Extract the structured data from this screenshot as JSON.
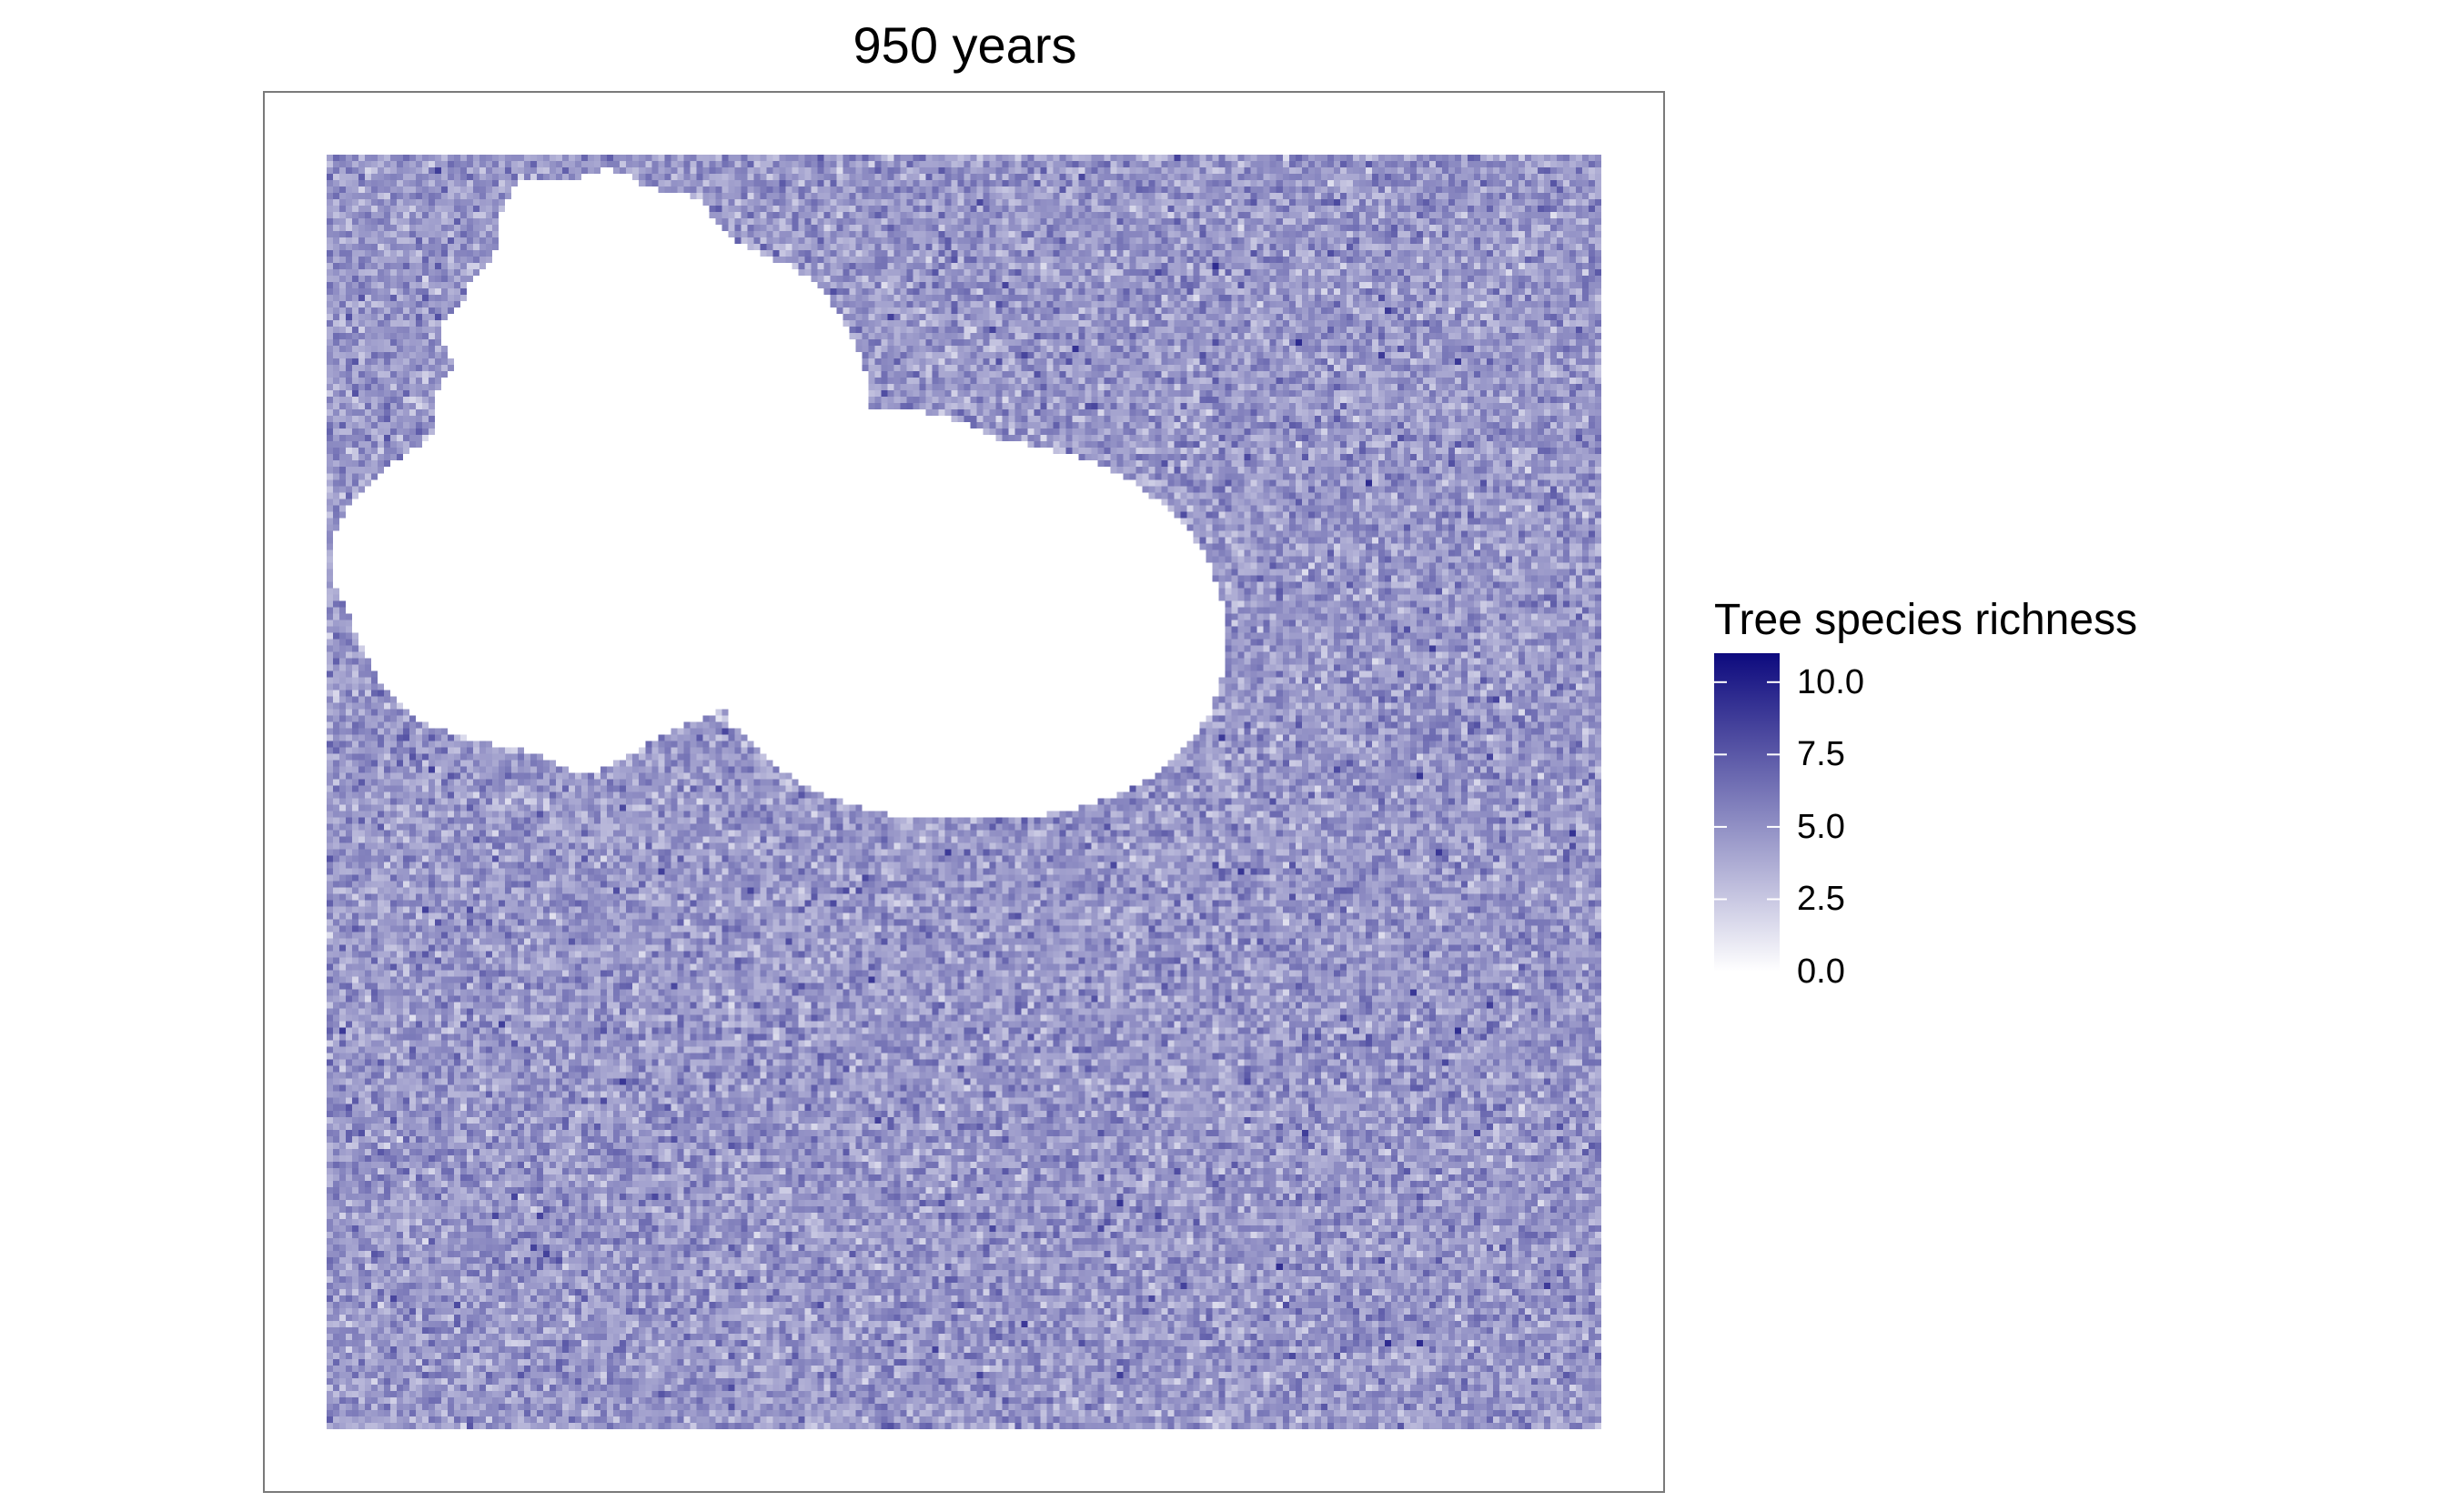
{
  "title": "950 years",
  "chart_data": {
    "type": "heatmap",
    "title": "950 years",
    "xlabel": "",
    "ylabel": "",
    "grid": false,
    "value_range": [
      0,
      11
    ],
    "legend": {
      "title": "Tree species richness",
      "placement": "right",
      "ticks": [
        {
          "value": 10,
          "label": "10.0"
        },
        {
          "value": 7.5,
          "label": "7.5"
        },
        {
          "value": 5,
          "label": "5.0"
        },
        {
          "value": 2.5,
          "label": "2.5"
        },
        {
          "value": 0,
          "label": "0.0"
        }
      ]
    },
    "palette": {
      "low": "#ffffff",
      "high": "#0d0a7e",
      "na": "#ffffff"
    },
    "grid_size": 200,
    "pattern": "noisy richness field, mostly 2–7 species, with an irregular region of zero richness (white) left of centre",
    "typical_value_range": [
      2,
      7
    ]
  }
}
